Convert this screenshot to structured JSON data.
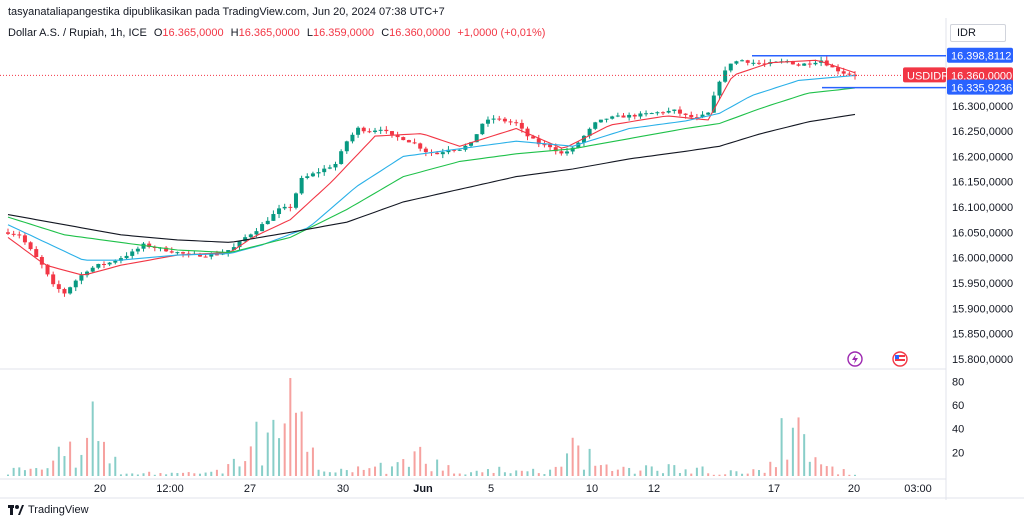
{
  "header": {
    "published_line": "tasyanataliapangestika dipublikasikan pada TradingView.com, Jun 20, 2024 07:38 UTC+7"
  },
  "legend": {
    "symbol": "Dollar A.S. / Rupiah, 1h, ICE",
    "open_label": "O",
    "open": "16.365,0000",
    "high_label": "H",
    "high": "16.365,0000",
    "low_label": "L",
    "low": "16.359,0000",
    "close_label": "C",
    "close": "16.360,0000",
    "change": "+1,0000 (+0,01%)"
  },
  "currency_selector": "IDR",
  "footer": {
    "brand": "TradingView"
  },
  "colors": {
    "up": "#089981",
    "down": "#f23645",
    "ema_fast": "#f23645",
    "ema_mid": "#2ab0e8",
    "ema_slow": "#1fc14a",
    "ema_long": "#131722",
    "marker_blue": "#2962ff"
  },
  "chart_data": {
    "type": "candlestick",
    "price_axis": {
      "ticks": [
        "15.800,0000",
        "15.850,0000",
        "15.900,0000",
        "15.950,0000",
        "16.000,0000",
        "16.050,0000",
        "16.100,0000",
        "16.150,0000",
        "16.200,0000",
        "16.250,0000",
        "16.300,0000"
      ],
      "ylim": [
        15780,
        16420
      ]
    },
    "volume_axis": {
      "ticks": [
        "20",
        "40",
        "60",
        "80"
      ],
      "ylim": [
        0,
        88
      ]
    },
    "time_axis": [
      "20",
      "12:00",
      "27",
      "30",
      "Jun",
      "5",
      "10",
      "12",
      "17",
      "20",
      "03:00"
    ],
    "price_labels": [
      {
        "name": "high_marker",
        "value": 16398.8112,
        "text": "16.398,8112",
        "color": "#2962ff"
      },
      {
        "name": "symbol_tag",
        "text": "USDIDR",
        "color": "#f23645"
      },
      {
        "name": "last_price",
        "value": 16360,
        "text": "16.360,0000",
        "color": "#f23645"
      },
      {
        "name": "low_marker",
        "value": 16335.9236,
        "text": "16.335,9236",
        "color": "#2962ff"
      }
    ],
    "candle_anchors": [
      [
        0,
        16050
      ],
      [
        6,
        16045
      ],
      [
        12,
        16015
      ],
      [
        18,
        15985
      ],
      [
        24,
        15945
      ],
      [
        30,
        15930
      ],
      [
        36,
        15955
      ],
      [
        42,
        15975
      ],
      [
        48,
        15985
      ],
      [
        54,
        15990
      ],
      [
        60,
        16000
      ],
      [
        66,
        16010
      ],
      [
        72,
        16025
      ],
      [
        78,
        16020
      ],
      [
        84,
        16015
      ],
      [
        90,
        16010
      ],
      [
        96,
        16005
      ],
      [
        102,
        16005
      ],
      [
        108,
        16005
      ],
      [
        114,
        16010
      ],
      [
        120,
        16020
      ],
      [
        126,
        16040
      ],
      [
        132,
        16055
      ],
      [
        138,
        16075
      ],
      [
        144,
        16095
      ],
      [
        150,
        16100
      ],
      [
        156,
        16155
      ],
      [
        162,
        16165
      ],
      [
        168,
        16175
      ],
      [
        174,
        16185
      ],
      [
        180,
        16230
      ],
      [
        186,
        16255
      ],
      [
        192,
        16250
      ],
      [
        198,
        16255
      ],
      [
        204,
        16240
      ],
      [
        210,
        16235
      ],
      [
        216,
        16225
      ],
      [
        222,
        16210
      ],
      [
        228,
        16205
      ],
      [
        234,
        16215
      ],
      [
        240,
        16215
      ],
      [
        246,
        16225
      ],
      [
        252,
        16265
      ],
      [
        258,
        16275
      ],
      [
        264,
        16270
      ],
      [
        270,
        16265
      ],
      [
        276,
        16240
      ],
      [
        282,
        16225
      ],
      [
        288,
        16220
      ],
      [
        294,
        16205
      ],
      [
        300,
        16215
      ],
      [
        306,
        16240
      ],
      [
        312,
        16265
      ],
      [
        318,
        16275
      ],
      [
        324,
        16278
      ],
      [
        330,
        16280
      ],
      [
        336,
        16282
      ],
      [
        342,
        16285
      ],
      [
        348,
        16288
      ],
      [
        354,
        16290
      ],
      [
        360,
        16280
      ],
      [
        366,
        16275
      ],
      [
        372,
        16285
      ],
      [
        378,
        16350
      ],
      [
        384,
        16385
      ],
      [
        390,
        16390
      ],
      [
        396,
        16385
      ],
      [
        402,
        16382
      ],
      [
        408,
        16385
      ],
      [
        414,
        16388
      ],
      [
        420,
        16380
      ],
      [
        426,
        16385
      ],
      [
        432,
        16390
      ],
      [
        438,
        16375
      ],
      [
        444,
        16365
      ],
      [
        450,
        16360
      ]
    ],
    "ma_series": [
      {
        "id": "ema_fast",
        "color": "#f23645",
        "points": [
          [
            0,
            16040
          ],
          [
            20,
            15985
          ],
          [
            40,
            15965
          ],
          [
            60,
            15985
          ],
          [
            90,
            16005
          ],
          [
            118,
            16010
          ],
          [
            130,
            16040
          ],
          [
            150,
            16075
          ],
          [
            172,
            16150
          ],
          [
            195,
            16240
          ],
          [
            220,
            16245
          ],
          [
            240,
            16220
          ],
          [
            270,
            16255
          ],
          [
            295,
            16215
          ],
          [
            320,
            16262
          ],
          [
            350,
            16280
          ],
          [
            372,
            16272
          ],
          [
            385,
            16360
          ],
          [
            405,
            16385
          ],
          [
            430,
            16390
          ],
          [
            450,
            16365
          ]
        ]
      },
      {
        "id": "ema_mid",
        "color": "#2ab0e8",
        "points": [
          [
            0,
            16065
          ],
          [
            20,
            16030
          ],
          [
            40,
            15995
          ],
          [
            60,
            15995
          ],
          [
            90,
            16005
          ],
          [
            118,
            16008
          ],
          [
            135,
            16025
          ],
          [
            160,
            16060
          ],
          [
            185,
            16140
          ],
          [
            210,
            16200
          ],
          [
            240,
            16215
          ],
          [
            270,
            16230
          ],
          [
            300,
            16220
          ],
          [
            330,
            16255
          ],
          [
            360,
            16270
          ],
          [
            378,
            16285
          ],
          [
            395,
            16320
          ],
          [
            420,
            16350
          ],
          [
            450,
            16360
          ]
        ]
      },
      {
        "id": "ema_slow",
        "color": "#1fc14a",
        "points": [
          [
            0,
            16080
          ],
          [
            30,
            16045
          ],
          [
            60,
            16030
          ],
          [
            90,
            16015
          ],
          [
            118,
            16010
          ],
          [
            150,
            16040
          ],
          [
            180,
            16095
          ],
          [
            210,
            16160
          ],
          [
            240,
            16190
          ],
          [
            270,
            16205
          ],
          [
            300,
            16215
          ],
          [
            330,
            16235
          ],
          [
            360,
            16255
          ],
          [
            378,
            16265
          ],
          [
            400,
            16295
          ],
          [
            425,
            16325
          ],
          [
            450,
            16335
          ]
        ]
      },
      {
        "id": "ema_long",
        "color": "#131722",
        "points": [
          [
            0,
            16085
          ],
          [
            30,
            16065
          ],
          [
            60,
            16045
          ],
          [
            90,
            16035
          ],
          [
            118,
            16030
          ],
          [
            150,
            16050
          ],
          [
            180,
            16070
          ],
          [
            210,
            16110
          ],
          [
            240,
            16135
          ],
          [
            270,
            16160
          ],
          [
            300,
            16175
          ],
          [
            330,
            16195
          ],
          [
            360,
            16210
          ],
          [
            378,
            16220
          ],
          [
            400,
            16245
          ],
          [
            425,
            16268
          ],
          [
            450,
            16283
          ]
        ]
      }
    ],
    "volume_anchors": [
      [
        0,
        8
      ],
      [
        20,
        6
      ],
      [
        45,
        70
      ],
      [
        60,
        4
      ],
      [
        90,
        3
      ],
      [
        115,
        6
      ],
      [
        130,
        40
      ],
      [
        150,
        80
      ],
      [
        165,
        10
      ],
      [
        185,
        18
      ],
      [
        200,
        10
      ],
      [
        220,
        28
      ],
      [
        240,
        6
      ],
      [
        260,
        8
      ],
      [
        290,
        6
      ],
      [
        300,
        32
      ],
      [
        320,
        10
      ],
      [
        340,
        12
      ],
      [
        360,
        10
      ],
      [
        380,
        5
      ],
      [
        400,
        6
      ],
      [
        420,
        80
      ],
      [
        430,
        12
      ],
      [
        450,
        4
      ]
    ]
  }
}
